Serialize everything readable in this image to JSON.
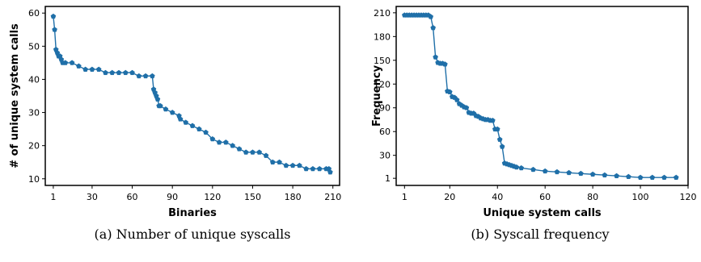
{
  "chart_data": [
    {
      "type": "line",
      "caption": "(a) Number of unique syscalls",
      "xlabel": "Binaries",
      "ylabel": "# of unique system calls",
      "xticks": [
        1,
        30,
        60,
        90,
        120,
        150,
        180,
        210
      ],
      "yticks": [
        10,
        20,
        30,
        40,
        50,
        60
      ],
      "xlim": [
        -5,
        215
      ],
      "ylim": [
        8,
        62
      ],
      "color": "#1f6fa8",
      "marker": "pentagon",
      "series": [
        {
          "x": [
            1,
            2,
            3,
            4,
            5,
            6,
            7,
            8,
            10,
            15,
            20,
            25,
            30,
            35,
            40,
            45,
            50,
            55,
            60,
            65,
            70,
            75,
            76,
            77,
            78,
            79,
            80,
            81,
            85,
            90,
            95,
            96,
            100,
            105,
            110,
            115,
            120,
            125,
            130,
            135,
            140,
            145,
            150,
            155,
            160,
            165,
            170,
            175,
            180,
            185,
            190,
            195,
            200,
            205,
            207,
            208
          ],
          "y": [
            59,
            55,
            49,
            48,
            47,
            47,
            46,
            45,
            45,
            45,
            44,
            43,
            43,
            43,
            42,
            42,
            42,
            42,
            42,
            41,
            41,
            41,
            37,
            36,
            35,
            34,
            32,
            32,
            31,
            30,
            29,
            28,
            27,
            26,
            25,
            24,
            22,
            21,
            21,
            20,
            19,
            18,
            18,
            18,
            17,
            15,
            15,
            14,
            14,
            14,
            13,
            13,
            13,
            13,
            13,
            12
          ]
        }
      ]
    },
    {
      "type": "line",
      "caption": "(b) Syscall frequency",
      "xlabel": "Unique system calls",
      "ylabel": "Frequency",
      "xticks": [
        1,
        20,
        40,
        60,
        80,
        100,
        120
      ],
      "yticks": [
        1,
        30,
        60,
        90,
        120,
        150,
        180,
        210
      ],
      "xlim": [
        -2.5,
        120
      ],
      "ylim": [
        -8,
        218
      ],
      "color": "#1f6fa8",
      "marker": "pentagon",
      "series": [
        {
          "x": [
            1,
            2,
            3,
            4,
            5,
            6,
            7,
            8,
            9,
            10,
            11,
            12,
            13,
            14,
            15,
            16,
            17,
            18,
            19,
            20,
            21,
            22,
            23,
            24,
            25,
            26,
            27,
            28,
            29,
            30,
            31,
            32,
            33,
            34,
            35,
            36,
            37,
            38,
            39,
            40,
            41,
            42,
            43,
            44,
            45,
            46,
            47,
            48,
            50,
            55,
            60,
            65,
            70,
            75,
            80,
            85,
            90,
            95,
            100,
            105,
            110,
            115
          ],
          "y": [
            207,
            207,
            207,
            207,
            207,
            207,
            207,
            207,
            207,
            207,
            207,
            205,
            191,
            154,
            147,
            146,
            146,
            145,
            111,
            110,
            104,
            103,
            100,
            95,
            93,
            91,
            90,
            84,
            83,
            83,
            80,
            79,
            77,
            76,
            75,
            75,
            74,
            74,
            63,
            63,
            50,
            41,
            20,
            19,
            18,
            17,
            16,
            15,
            14,
            12,
            10,
            9,
            8,
            7,
            6,
            5,
            4,
            3,
            2,
            2,
            2,
            2
          ]
        }
      ]
    }
  ]
}
